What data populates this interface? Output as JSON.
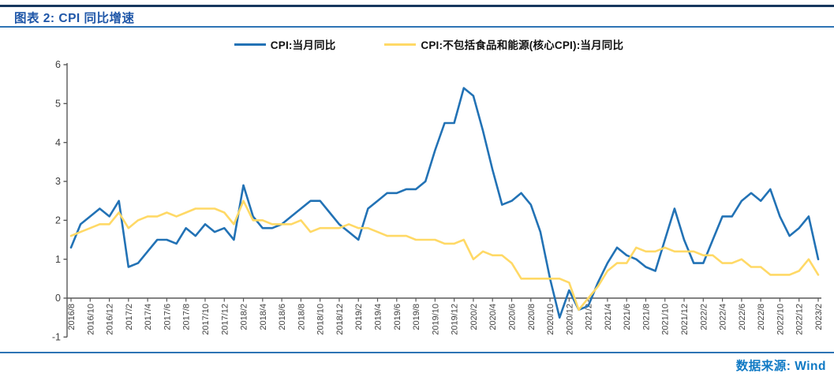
{
  "header": {
    "title": "图表 2: CPI 同比增速"
  },
  "footer": {
    "source_label": "数据来源: Wind"
  },
  "colors": {
    "top_rule": "#17375E",
    "title_text": "#1E56A8",
    "divider_blue": "#2E74B5",
    "footer_text": "#0F79C4",
    "cpi_line": "#2272B5",
    "core_cpi_line": "#FFD966",
    "axis": "#595959",
    "tick_label": "#404040"
  },
  "chart_data": {
    "type": "line",
    "title": "图表 2: CPI 同比增速",
    "xlabel": "",
    "ylabel": "",
    "ylim": [
      -1,
      6
    ],
    "yticks": [
      6,
      5,
      4,
      3,
      2,
      1,
      0,
      -1
    ],
    "grid": false,
    "legend_position": "top",
    "x_axis_crosses_at": 0,
    "xtick_every": 2,
    "x": [
      "2016/8",
      "2016/9",
      "2016/10",
      "2016/11",
      "2016/12",
      "2017/1",
      "2017/2",
      "2017/3",
      "2017/4",
      "2017/5",
      "2017/6",
      "2017/7",
      "2017/8",
      "2017/9",
      "2017/10",
      "2017/11",
      "2017/12",
      "2018/1",
      "2018/2",
      "2018/3",
      "2018/4",
      "2018/5",
      "2018/6",
      "2018/7",
      "2018/8",
      "2018/9",
      "2018/10",
      "2018/11",
      "2018/12",
      "2019/1",
      "2019/2",
      "2019/3",
      "2019/4",
      "2019/5",
      "2019/6",
      "2019/7",
      "2019/8",
      "2019/9",
      "2019/10",
      "2019/11",
      "2019/12",
      "2020/1",
      "2020/2",
      "2020/3",
      "2020/4",
      "2020/5",
      "2020/6",
      "2020/7",
      "2020/8",
      "2020/9",
      "2020/10",
      "2020/11",
      "2020/12",
      "2021/1",
      "2021/2",
      "2021/3",
      "2021/4",
      "2021/5",
      "2021/6",
      "2021/7",
      "2021/8",
      "2021/9",
      "2021/10",
      "2021/11",
      "2021/12",
      "2022/1",
      "2022/2",
      "2022/3",
      "2022/4",
      "2022/5",
      "2022/6",
      "2022/7",
      "2022/8",
      "2022/9",
      "2022/10",
      "2022/11",
      "2022/12",
      "2023/1",
      "2023/2"
    ],
    "xtick_labels": [
      "2016/8",
      "2016/10",
      "2016/12",
      "2017/2",
      "2017/4",
      "2017/6",
      "2017/8",
      "2017/10",
      "2017/12",
      "2018/2",
      "2018/4",
      "2018/6",
      "2018/8",
      "2018/10",
      "2018/12",
      "2019/2",
      "2019/4",
      "2019/6",
      "2019/8",
      "2019/10",
      "2019/12",
      "2020/2",
      "2020/4",
      "2020/6",
      "2020/8",
      "2020/10",
      "2020/12",
      "2021/2",
      "2021/4",
      "2021/6",
      "2021/8",
      "2021/10",
      "2021/12",
      "2022/2",
      "2022/4",
      "2022/6",
      "2022/8",
      "2022/10",
      "2022/12",
      "2023/2"
    ],
    "series": [
      {
        "name": "CPI:当月同比",
        "color": "#2272B5",
        "values": [
          1.3,
          1.9,
          2.1,
          2.3,
          2.1,
          2.5,
          0.8,
          0.9,
          1.2,
          1.5,
          1.5,
          1.4,
          1.8,
          1.6,
          1.9,
          1.7,
          1.8,
          1.5,
          2.9,
          2.1,
          1.8,
          1.8,
          1.9,
          2.1,
          2.3,
          2.5,
          2.5,
          2.2,
          1.9,
          1.7,
          1.5,
          2.3,
          2.5,
          2.7,
          2.7,
          2.8,
          2.8,
          3.0,
          3.8,
          4.5,
          4.5,
          5.4,
          5.2,
          4.3,
          3.3,
          2.4,
          2.5,
          2.7,
          2.4,
          1.7,
          0.5,
          -0.5,
          0.2,
          -0.3,
          -0.2,
          0.4,
          0.9,
          1.3,
          1.1,
          1.0,
          0.8,
          0.7,
          1.5,
          2.3,
          1.5,
          0.9,
          0.9,
          1.5,
          2.1,
          2.1,
          2.5,
          2.7,
          2.5,
          2.8,
          2.1,
          1.6,
          1.8,
          2.1,
          1.0
        ]
      },
      {
        "name": "CPI:不包括食品和能源(核心CPI):当月同比",
        "color": "#FFD966",
        "values": [
          1.6,
          1.7,
          1.8,
          1.9,
          1.9,
          2.2,
          1.8,
          2.0,
          2.1,
          2.1,
          2.2,
          2.1,
          2.2,
          2.3,
          2.3,
          2.3,
          2.2,
          1.9,
          2.5,
          2.0,
          2.0,
          1.9,
          1.9,
          1.9,
          2.0,
          1.7,
          1.8,
          1.8,
          1.8,
          1.9,
          1.8,
          1.8,
          1.7,
          1.6,
          1.6,
          1.6,
          1.5,
          1.5,
          1.5,
          1.4,
          1.4,
          1.5,
          1.0,
          1.2,
          1.1,
          1.1,
          0.9,
          0.5,
          0.5,
          0.5,
          0.5,
          0.5,
          0.4,
          -0.3,
          0.0,
          0.3,
          0.7,
          0.9,
          0.9,
          1.3,
          1.2,
          1.2,
          1.3,
          1.2,
          1.2,
          1.2,
          1.1,
          1.1,
          0.9,
          0.9,
          1.0,
          0.8,
          0.8,
          0.6,
          0.6,
          0.6,
          0.7,
          1.0,
          0.6
        ]
      }
    ]
  }
}
